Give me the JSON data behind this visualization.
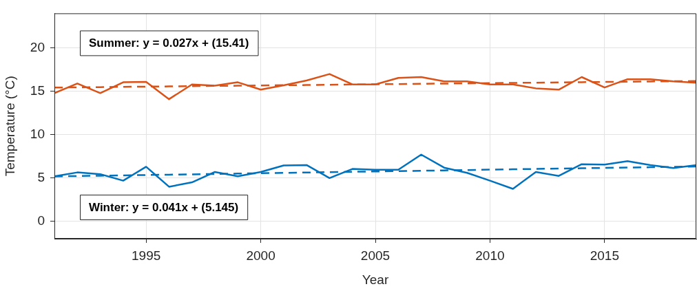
{
  "chart_data": {
    "type": "line",
    "xlabel": "Year",
    "ylabel": "Temperature (°C)",
    "x": [
      1991,
      1992,
      1993,
      1994,
      1995,
      1996,
      1997,
      1998,
      1999,
      2000,
      2001,
      2002,
      2003,
      2004,
      2005,
      2006,
      2007,
      2008,
      2009,
      2010,
      2011,
      2012,
      2013,
      2014,
      2015,
      2016,
      2017,
      2018,
      2019
    ],
    "series": [
      {
        "color": "#d95319",
        "values": [
          14.8,
          15.9,
          14.8,
          16.05,
          16.1,
          14.1,
          15.8,
          15.65,
          16.05,
          15.2,
          15.7,
          16.25,
          17.0,
          15.8,
          15.8,
          16.55,
          16.65,
          16.15,
          16.15,
          15.8,
          15.8,
          15.35,
          15.2,
          16.65,
          15.45,
          16.4,
          16.4,
          16.15,
          16.0
        ]
      },
      {
        "color": "#0072bd",
        "values": [
          5.2,
          5.65,
          5.45,
          4.7,
          6.3,
          4.0,
          4.5,
          5.7,
          5.2,
          5.7,
          6.45,
          6.5,
          5.0,
          6.05,
          5.95,
          5.95,
          7.7,
          6.2,
          5.6,
          4.7,
          3.75,
          5.7,
          5.25,
          6.6,
          6.55,
          6.95,
          6.5,
          6.15,
          6.5
        ]
      },
      {
        "type": "line",
        "line_style": "dashed",
        "color": "#d95319",
        "values": [
          15.44,
          15.46,
          15.49,
          15.52,
          15.55,
          15.57,
          15.6,
          15.63,
          15.65,
          15.68,
          15.71,
          15.73,
          15.76,
          15.79,
          15.82,
          15.84,
          15.87,
          15.9,
          15.92,
          15.95,
          15.98,
          16.0,
          16.03,
          16.06,
          16.09,
          16.11,
          16.14,
          16.17,
          16.19
        ]
      },
      {
        "type": "line",
        "line_style": "dashed",
        "color": "#0072bd",
        "values": [
          5.19,
          5.23,
          5.27,
          5.31,
          5.35,
          5.39,
          5.43,
          5.47,
          5.51,
          5.56,
          5.6,
          5.64,
          5.68,
          5.72,
          5.76,
          5.8,
          5.84,
          5.88,
          5.92,
          5.97,
          6.01,
          6.05,
          6.09,
          6.13,
          6.17,
          6.21,
          6.25,
          6.29,
          6.33
        ]
      }
    ],
    "annotations": [
      "Summer: y = 0.027x + (15.41)",
      "Winter: y = 0.041x + (5.145)"
    ],
    "xlim": [
      1991,
      2019
    ],
    "xticks": [
      1995,
      2000,
      2005,
      2010,
      2015
    ],
    "ylim": [
      -2,
      24
    ],
    "yticks": [
      0,
      5,
      10,
      15,
      20
    ],
    "grid": true,
    "legend": false,
    "marker": "none",
    "line_style": "solid"
  }
}
